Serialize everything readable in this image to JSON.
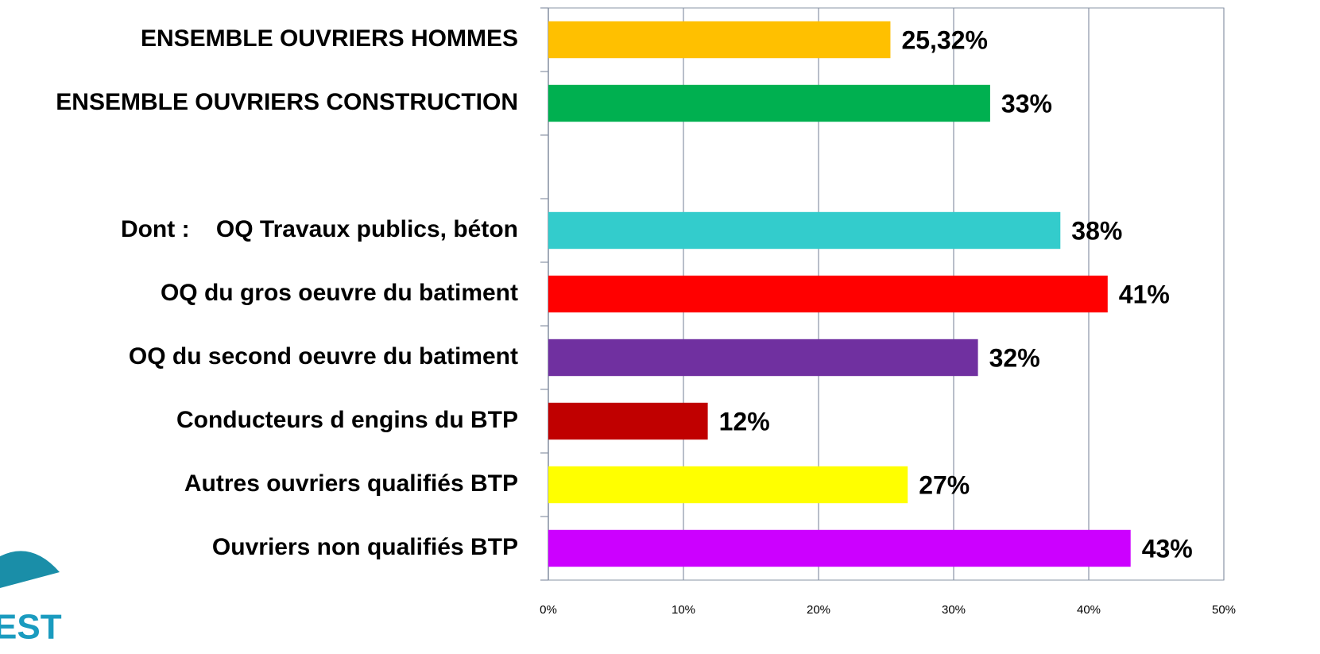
{
  "chart_data": {
    "type": "bar",
    "orientation": "horizontal",
    "categories": [
      "ENSEMBLE OUVRIERS HOMMES",
      "ENSEMBLE OUVRIERS CONSTRUCTION",
      null,
      "Dont :    OQ Travaux publics, béton",
      "OQ du gros oeuvre du batiment",
      "OQ du second oeuvre du batiment",
      "Conducteurs d engins du BTP",
      "Autres ouvriers qualifiés BTP",
      "Ouvriers non qualifiés BTP"
    ],
    "values": [
      25.32,
      32.7,
      null,
      37.9,
      41.4,
      31.8,
      11.8,
      26.6,
      43.1
    ],
    "value_labels": [
      "25,32%",
      "33%",
      null,
      "38%",
      "41%",
      "32%",
      "12%",
      "27%",
      "43%"
    ],
    "colors": [
      "#ffc000",
      "#00b050",
      null,
      "#33cccc",
      "#ff0000",
      "#7030a0",
      "#c00000",
      "#ffff00",
      "#cc00ff"
    ],
    "xlim": [
      0,
      50
    ],
    "xticks": [
      {
        "value": 0,
        "label": "0%"
      },
      {
        "value": 10,
        "label": "10%"
      },
      {
        "value": 20,
        "label": "20%"
      },
      {
        "value": 30,
        "label": "30%"
      },
      {
        "value": 40,
        "label": "40%"
      },
      {
        "value": 50,
        "label": "50%"
      }
    ],
    "grid": true
  },
  "logo_text": "EST"
}
